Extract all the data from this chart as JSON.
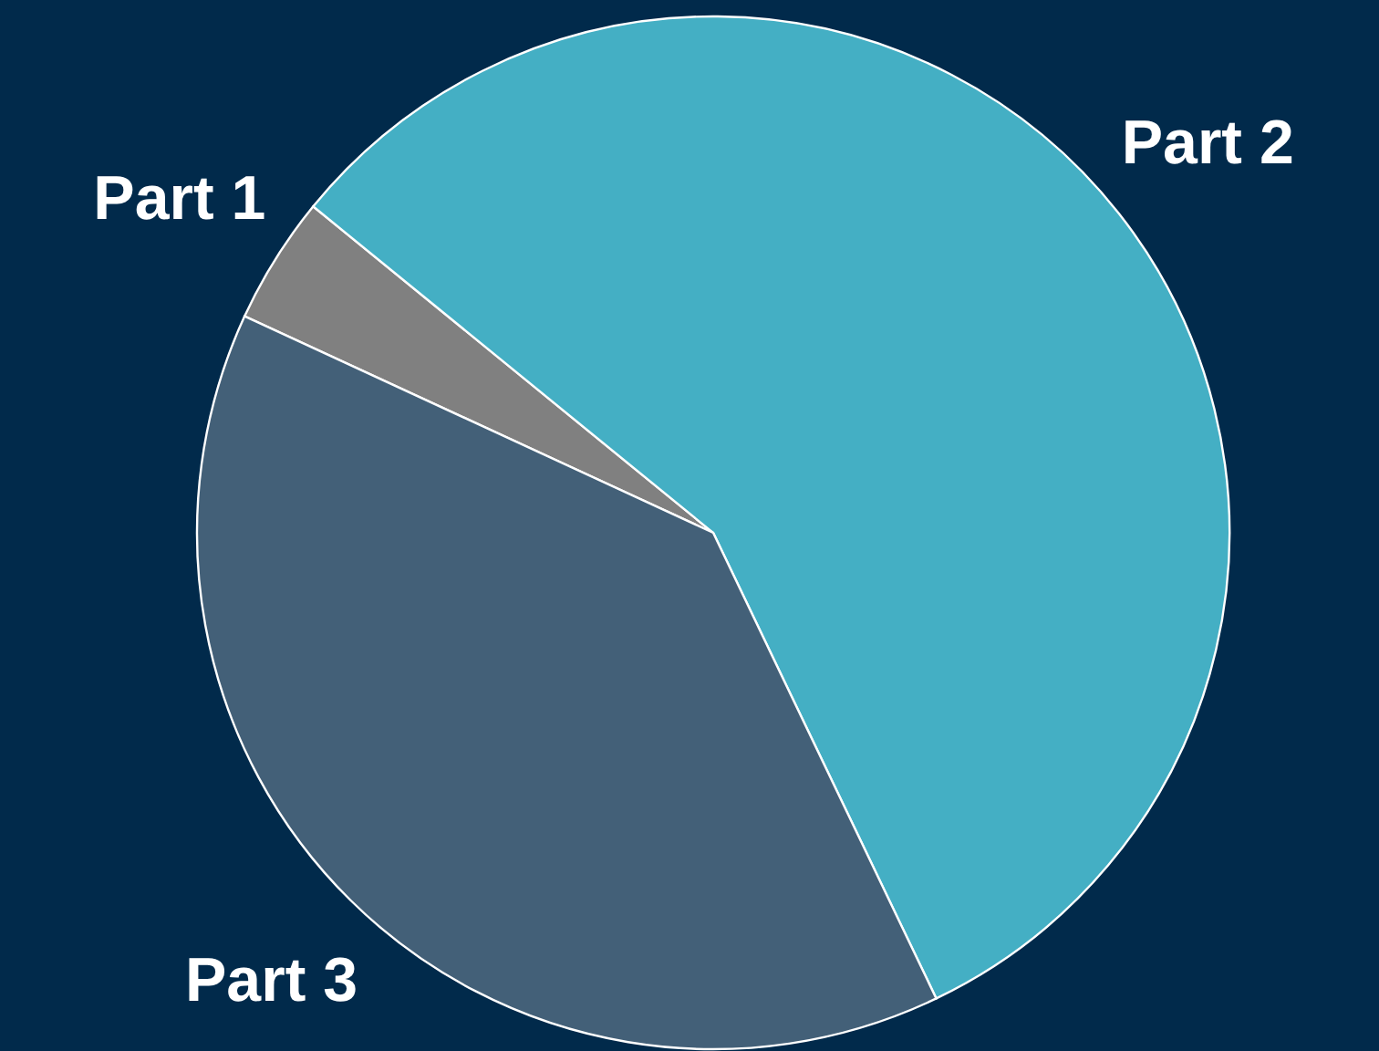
{
  "chart_data": {
    "type": "pie",
    "categories": [
      "Part 1",
      "Part 2",
      "Part 3"
    ],
    "values": [
      4,
      57,
      39
    ],
    "colors": [
      "#808080",
      "#44afc4",
      "#436078"
    ]
  }
}
